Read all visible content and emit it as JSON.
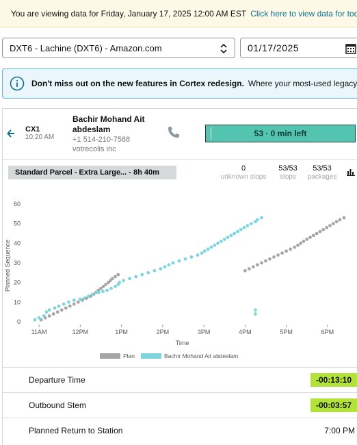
{
  "banner": {
    "message": "You are viewing data for Friday, January 17, 2025 12:00 AM EST",
    "link": "Click here to view data for today"
  },
  "station_select": {
    "value": "DXT6 - Lachine (DXT6) - Amazon.com"
  },
  "date_input": {
    "value": "01/17/2025"
  },
  "info_banner": {
    "title": "Don't miss out on the new features in Cortex redesign.",
    "text": "Where your most-used legacy-"
  },
  "route": {
    "code": "CX1",
    "time": "10:20 AM",
    "driver_name": "Bachir Mohand Ait abdeslam",
    "driver_phone": "+1 514-210-7588",
    "company": "votrecolis inc",
    "progress_label": "53 · 0 min left",
    "progress_fraction": 0.03,
    "progress_color": "#53c4b0"
  },
  "plan": {
    "label": "Standard Parcel - Extra Large... - 8h 40m"
  },
  "stats": [
    {
      "value": "0",
      "label": "unknown stops"
    },
    {
      "value": "53/53",
      "label": "stops"
    },
    {
      "value": "53/53",
      "label": "packages"
    }
  ],
  "chart_data": {
    "type": "scatter",
    "xlabel": "Time",
    "ylabel": "Planned Sequence",
    "ylim": [
      0,
      60
    ],
    "y_ticks": [
      "0",
      "10",
      "20",
      "30",
      "40",
      "50",
      "60"
    ],
    "x_ticks": [
      "11AM",
      "12PM",
      "1PM",
      "2PM",
      "3PM",
      "4PM",
      "5PM",
      "6PM"
    ],
    "x_tick_hours": [
      11,
      12,
      13,
      14,
      15,
      16,
      17,
      18
    ],
    "xlim": [
      10.6,
      18.55
    ],
    "legend_position": "bottom",
    "series": [
      {
        "name": "Plan",
        "color": "#a6a6a6",
        "points": [
          [
            11.05,
            1
          ],
          [
            11.15,
            2
          ],
          [
            11.25,
            3
          ],
          [
            11.35,
            4
          ],
          [
            11.45,
            5
          ],
          [
            11.55,
            6
          ],
          [
            11.65,
            7
          ],
          [
            11.75,
            8
          ],
          [
            11.85,
            9
          ],
          [
            11.95,
            10
          ],
          [
            12.05,
            11
          ],
          [
            12.15,
            12
          ],
          [
            12.25,
            13
          ],
          [
            12.32,
            14
          ],
          [
            12.38,
            15
          ],
          [
            12.44,
            16
          ],
          [
            12.5,
            17
          ],
          [
            12.56,
            18
          ],
          [
            12.62,
            19
          ],
          [
            12.68,
            20
          ],
          [
            12.73,
            21
          ],
          [
            12.78,
            22
          ],
          [
            12.85,
            23
          ],
          [
            12.92,
            24
          ],
          [
            16.0,
            26
          ],
          [
            16.1,
            27
          ],
          [
            16.2,
            28
          ],
          [
            16.3,
            29
          ],
          [
            16.4,
            30
          ],
          [
            16.5,
            31
          ],
          [
            16.6,
            32
          ],
          [
            16.7,
            33
          ],
          [
            16.8,
            34
          ],
          [
            16.9,
            35
          ],
          [
            17.0,
            36
          ],
          [
            17.1,
            37
          ],
          [
            17.2,
            38
          ],
          [
            17.28,
            39
          ],
          [
            17.35,
            40
          ],
          [
            17.42,
            41
          ],
          [
            17.5,
            42
          ],
          [
            17.58,
            43
          ],
          [
            17.66,
            44
          ],
          [
            17.74,
            45
          ],
          [
            17.82,
            46
          ],
          [
            17.9,
            47
          ],
          [
            17.98,
            48
          ],
          [
            18.06,
            49
          ],
          [
            18.14,
            50
          ],
          [
            18.22,
            51
          ],
          [
            18.3,
            52
          ],
          [
            18.4,
            53
          ]
        ]
      },
      {
        "name": "Bachir Mohand Ait abdeslam",
        "color": "#7fd5df",
        "points": [
          [
            10.9,
            1
          ],
          [
            11.0,
            2
          ],
          [
            11.12,
            3
          ],
          [
            11.18,
            5
          ],
          [
            11.25,
            6
          ],
          [
            11.38,
            7
          ],
          [
            11.48,
            8
          ],
          [
            11.6,
            9
          ],
          [
            11.72,
            10
          ],
          [
            11.85,
            11
          ],
          [
            12.0,
            11.5
          ],
          [
            12.1,
            12
          ],
          [
            12.2,
            13
          ],
          [
            12.3,
            14
          ],
          [
            12.4,
            15
          ],
          [
            12.45,
            15
          ],
          [
            12.55,
            15.5
          ],
          [
            12.65,
            16
          ],
          [
            12.75,
            17
          ],
          [
            12.85,
            18
          ],
          [
            12.92,
            19
          ],
          [
            12.95,
            20
          ],
          [
            13.05,
            21
          ],
          [
            13.2,
            22
          ],
          [
            13.35,
            23
          ],
          [
            13.5,
            24
          ],
          [
            13.65,
            25
          ],
          [
            13.8,
            26
          ],
          [
            13.95,
            27
          ],
          [
            14.05,
            28
          ],
          [
            14.15,
            29
          ],
          [
            14.25,
            30
          ],
          [
            14.4,
            31
          ],
          [
            14.55,
            32
          ],
          [
            14.7,
            33
          ],
          [
            14.85,
            34
          ],
          [
            14.95,
            35
          ],
          [
            15.02,
            36
          ],
          [
            15.1,
            37
          ],
          [
            15.18,
            38
          ],
          [
            15.26,
            39
          ],
          [
            15.34,
            40
          ],
          [
            15.42,
            41
          ],
          [
            15.5,
            42
          ],
          [
            15.58,
            43
          ],
          [
            15.66,
            44
          ],
          [
            15.74,
            45
          ],
          [
            15.82,
            46
          ],
          [
            15.9,
            47
          ],
          [
            15.98,
            48
          ],
          [
            16.06,
            49
          ],
          [
            16.15,
            50
          ],
          [
            16.25,
            51
          ],
          [
            16.3,
            52
          ],
          [
            16.4,
            53
          ],
          [
            16.25,
            6
          ],
          [
            16.25,
            4
          ]
        ]
      }
    ]
  },
  "metrics": {
    "departure": {
      "label": "Departure Time",
      "value": "-00:13:10",
      "color": "#b3e33b"
    },
    "outbound": {
      "label": "Outbound Stem",
      "value": "-00:03:57",
      "color": "#b3e33b"
    },
    "return": {
      "label": "Planned Return to Station",
      "value": "7:00 PM"
    }
  }
}
